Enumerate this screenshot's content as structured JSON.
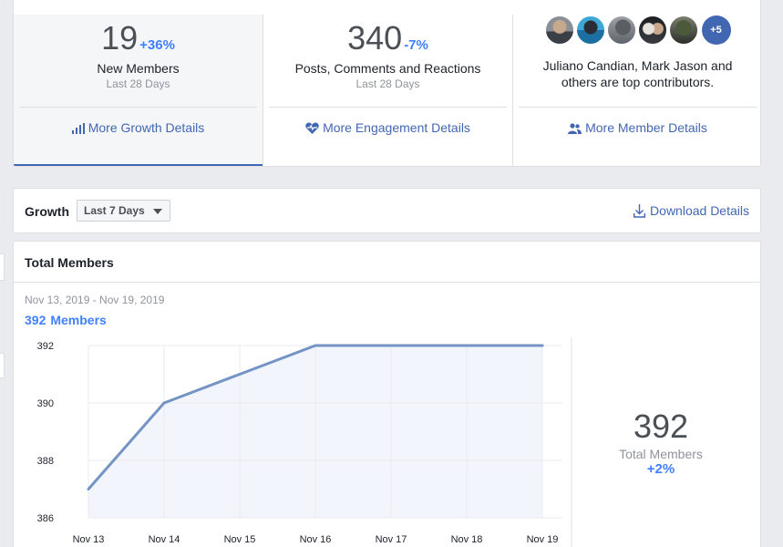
{
  "summary": {
    "growth": {
      "value": "19",
      "delta": "+36%",
      "label": "New Members",
      "period": "Last 28 Days",
      "link": "More Growth Details"
    },
    "engagement": {
      "value": "340",
      "delta": "-7%",
      "label": "Posts, Comments and Reactions",
      "period": "Last 28 Days",
      "link": "More Engagement Details"
    },
    "members": {
      "more_count": "+5",
      "contributors_line1": "Juliano Candian, Mark Jason and",
      "contributors_line2": "others are top contributors.",
      "link": "More Member Details"
    }
  },
  "growth_bar": {
    "title": "Growth",
    "range_selected": "Last 7 Days",
    "download": "Download Details"
  },
  "total_members": {
    "title": "Total Members",
    "date_range": "Nov 13, 2019 - Nov 19, 2019",
    "current_value": "392",
    "current_unit": "Members",
    "side_value": "392",
    "side_label": "Total Members",
    "side_delta": "+2%"
  },
  "colors": {
    "accent": "#4267b2",
    "positive": "#4080ff",
    "line": "#7394c4",
    "fill": "#f2f5fb"
  },
  "chart_data": {
    "type": "area",
    "x": [
      "Nov 13",
      "Nov 14",
      "Nov 15",
      "Nov 16",
      "Nov 17",
      "Nov 18",
      "Nov 19"
    ],
    "series": [
      {
        "values": [
          387,
          390,
          391,
          392,
          392,
          392,
          392
        ]
      }
    ],
    "yticks": [
      392,
      390,
      388,
      386
    ],
    "ylim": [
      386,
      392
    ],
    "grid": true
  }
}
